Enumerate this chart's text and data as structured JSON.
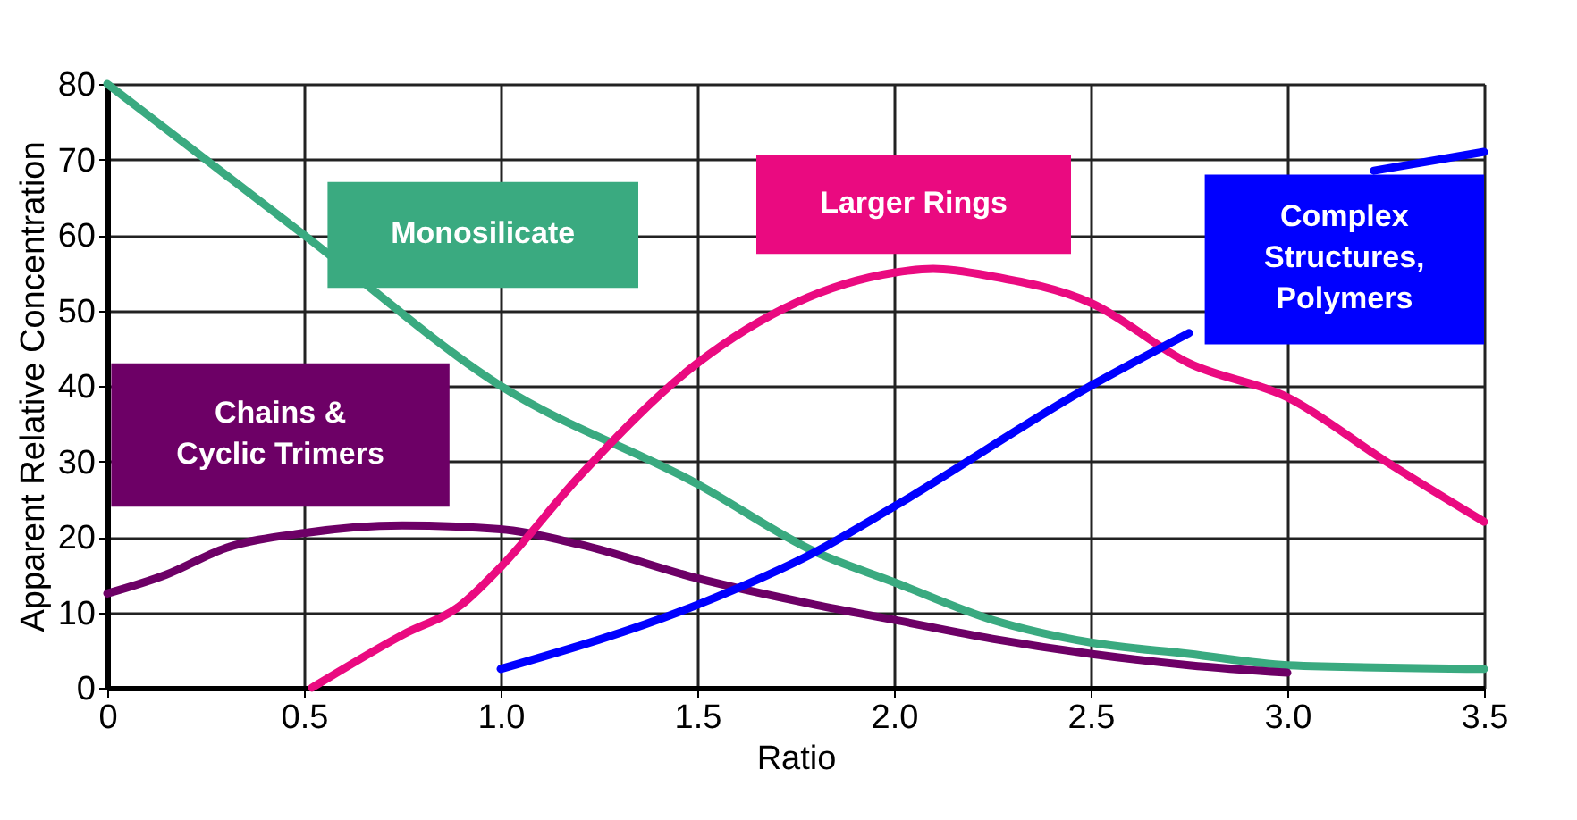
{
  "chart_data": {
    "type": "line",
    "xlabel": "Ratio",
    "ylabel": "Apparent Relative Concentration",
    "xlim": [
      0,
      3.5
    ],
    "ylim": [
      0,
      80
    ],
    "xticks": [
      {
        "value": 0,
        "label": "0"
      },
      0.5,
      {
        "value": 1,
        "label": "1.0"
      },
      1.5,
      {
        "value": 2,
        "label": "2.0"
      },
      2.5,
      {
        "value": 3,
        "label": "3.0"
      },
      3.5
    ],
    "yticks": [
      0,
      10,
      20,
      30,
      40,
      50,
      60,
      70,
      80
    ],
    "grid": true,
    "legend": false,
    "marker": "none",
    "line_style": "solid",
    "series": [
      {
        "name": "Monosilicate",
        "color": "#3aaa80",
        "x": [
          0,
          0.5,
          1.0,
          1.5,
          1.8,
          2.0,
          2.25,
          2.5,
          2.75,
          3.0,
          3.5
        ],
        "values": [
          80,
          60,
          40,
          27,
          18,
          14,
          9,
          6,
          4.5,
          3,
          2.5
        ]
      },
      {
        "name": "Chains & Cyclic Trimers",
        "color": "#6d0066",
        "x": [
          0,
          0.15,
          0.3,
          0.5,
          0.75,
          1.0,
          1.2,
          1.5,
          1.8,
          2.0,
          2.25,
          2.5,
          2.75,
          3.0
        ],
        "values": [
          12.5,
          15,
          18.5,
          20.5,
          21.5,
          21,
          19,
          14.5,
          11,
          9,
          6.5,
          4.5,
          3,
          2
        ]
      },
      {
        "name": "Larger Rings",
        "color": "#ea0a80",
        "x": [
          0.52,
          0.75,
          0.9,
          1.0,
          1.2,
          1.5,
          1.75,
          2.0,
          2.1,
          2.25,
          2.5,
          2.75,
          3.0,
          3.25,
          3.5
        ],
        "values": [
          0,
          7,
          11,
          16,
          28,
          43,
          51,
          55,
          55.5,
          54.5,
          51,
          43,
          38.5,
          30,
          22
        ]
      },
      {
        "name": "Complex Structures, Polymers",
        "color": "#0000ff",
        "x": [
          1.0,
          1.5,
          1.8,
          2.0,
          2.5,
          2.75,
          3.0,
          3.22,
          3.5
        ],
        "values": [
          2.5,
          11,
          18,
          24,
          40,
          47,
          null,
          68.5,
          71
        ]
      }
    ]
  }
}
